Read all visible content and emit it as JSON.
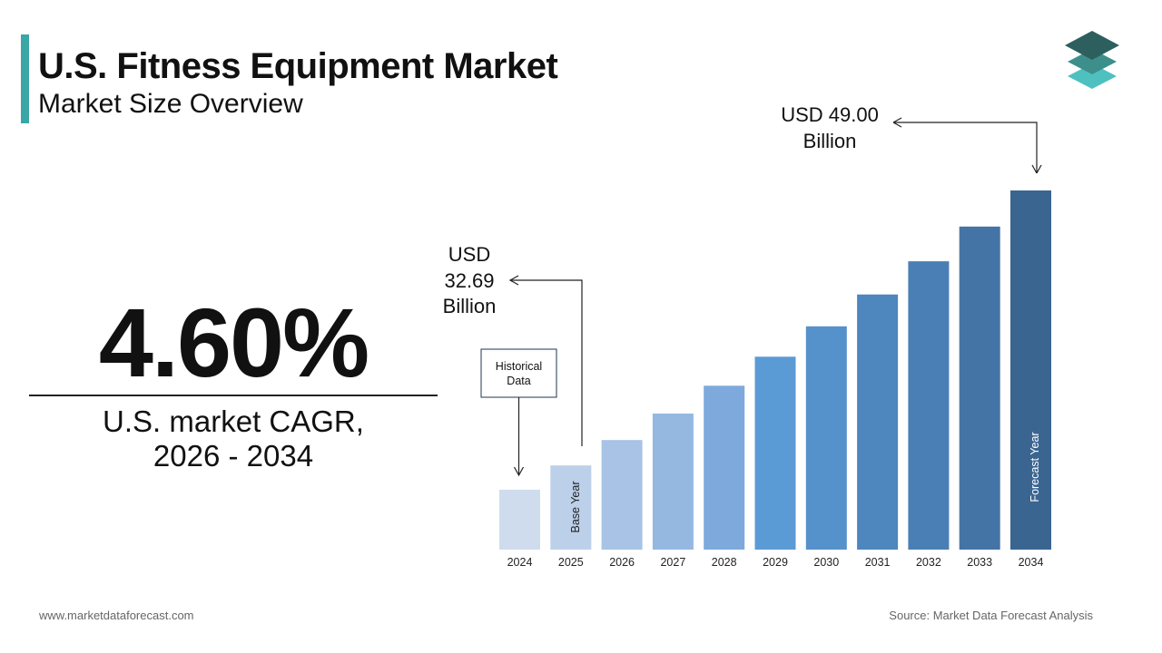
{
  "header": {
    "title": "U.S. Fitness Equipment Market",
    "subtitle": "Market Size Overview"
  },
  "logo_icon": "stacked-layers-logo",
  "colors": {
    "accent": "#3aa6a6",
    "logo_top": "#2c5f5d",
    "logo_mid": "#3d8f8b",
    "logo_bottom": "#4fc0c0"
  },
  "cagr": {
    "value": "4.60%",
    "label_line1": "U.S. market CAGR,",
    "label_line2": "2026 - 2034"
  },
  "chart_data": {
    "type": "bar",
    "categories": [
      "2024",
      "2025",
      "2026",
      "2027",
      "2028",
      "2029",
      "2030",
      "2031",
      "2032",
      "2033",
      "2034"
    ],
    "values": [
      31.25,
      32.69,
      34.2,
      35.77,
      37.42,
      39.14,
      40.94,
      42.83,
      44.8,
      46.86,
      49.0
    ],
    "bar_colors": [
      "#cfdcee",
      "#bcd0ea",
      "#a8c3e5",
      "#95b8e1",
      "#7ea9dc",
      "#5b9bd5",
      "#5591cb",
      "#4e86be",
      "#4a7fb5",
      "#4474a5",
      "#3a6591"
    ],
    "annotations": {
      "start": {
        "line1": "USD",
        "line2": "32.69",
        "line3": "Billion"
      },
      "end": {
        "line1": "USD 49.00",
        "line2": "Billion"
      },
      "historical_line1": "Historical",
      "historical_line2": "Data",
      "base_year": "Base Year",
      "forecast_year": "Forecast Year"
    }
  },
  "footer": {
    "website": "www.marketdataforecast.com",
    "source": "Source: Market Data Forecast Analysis"
  }
}
